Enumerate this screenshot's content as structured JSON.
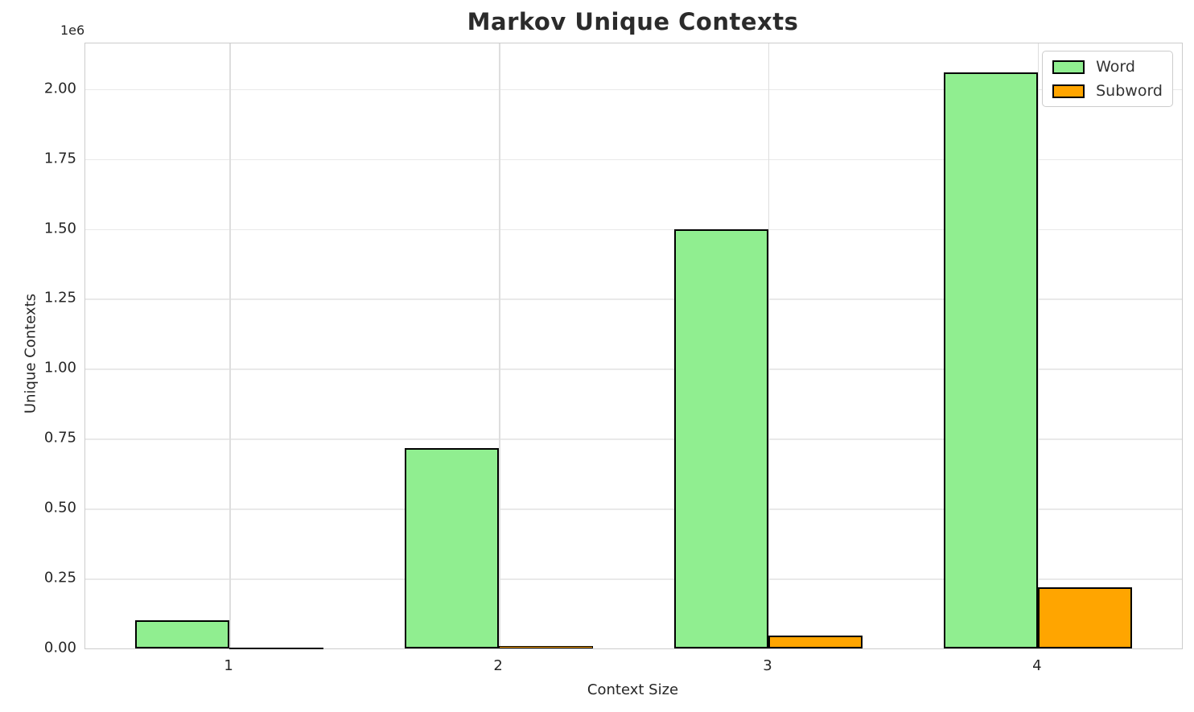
{
  "chart_data": {
    "type": "bar",
    "title": "Markov Unique Contexts",
    "xlabel": "Context Size",
    "ylabel": "Unique Contexts",
    "y_offset_text": "1e6",
    "categories": [
      1,
      2,
      3,
      4
    ],
    "xtick_labels": [
      "1",
      "2",
      "3",
      "4"
    ],
    "series": [
      {
        "name": "Word",
        "color": "#90EE90",
        "values": [
          100000,
          715000,
          1500000,
          2060000
        ]
      },
      {
        "name": "Subword",
        "color": "#FFA500",
        "values": [
          2000,
          10000,
          46000,
          220000
        ]
      }
    ],
    "bar_width": 0.35,
    "bar_edge_color": "#000000",
    "xlim": [
      0.465,
      4.535
    ],
    "ylim": [
      0,
      2163000
    ],
    "yticks": [
      0,
      250000,
      500000,
      750000,
      1000000,
      1250000,
      1500000,
      1750000,
      2000000
    ],
    "ytick_labels": [
      "0.00",
      "0.25",
      "0.50",
      "0.75",
      "1.00",
      "1.25",
      "1.50",
      "1.75",
      "2.00"
    ],
    "grid": true,
    "legend_position": "upper right",
    "legend_entries": [
      "Word",
      "Subword"
    ]
  }
}
